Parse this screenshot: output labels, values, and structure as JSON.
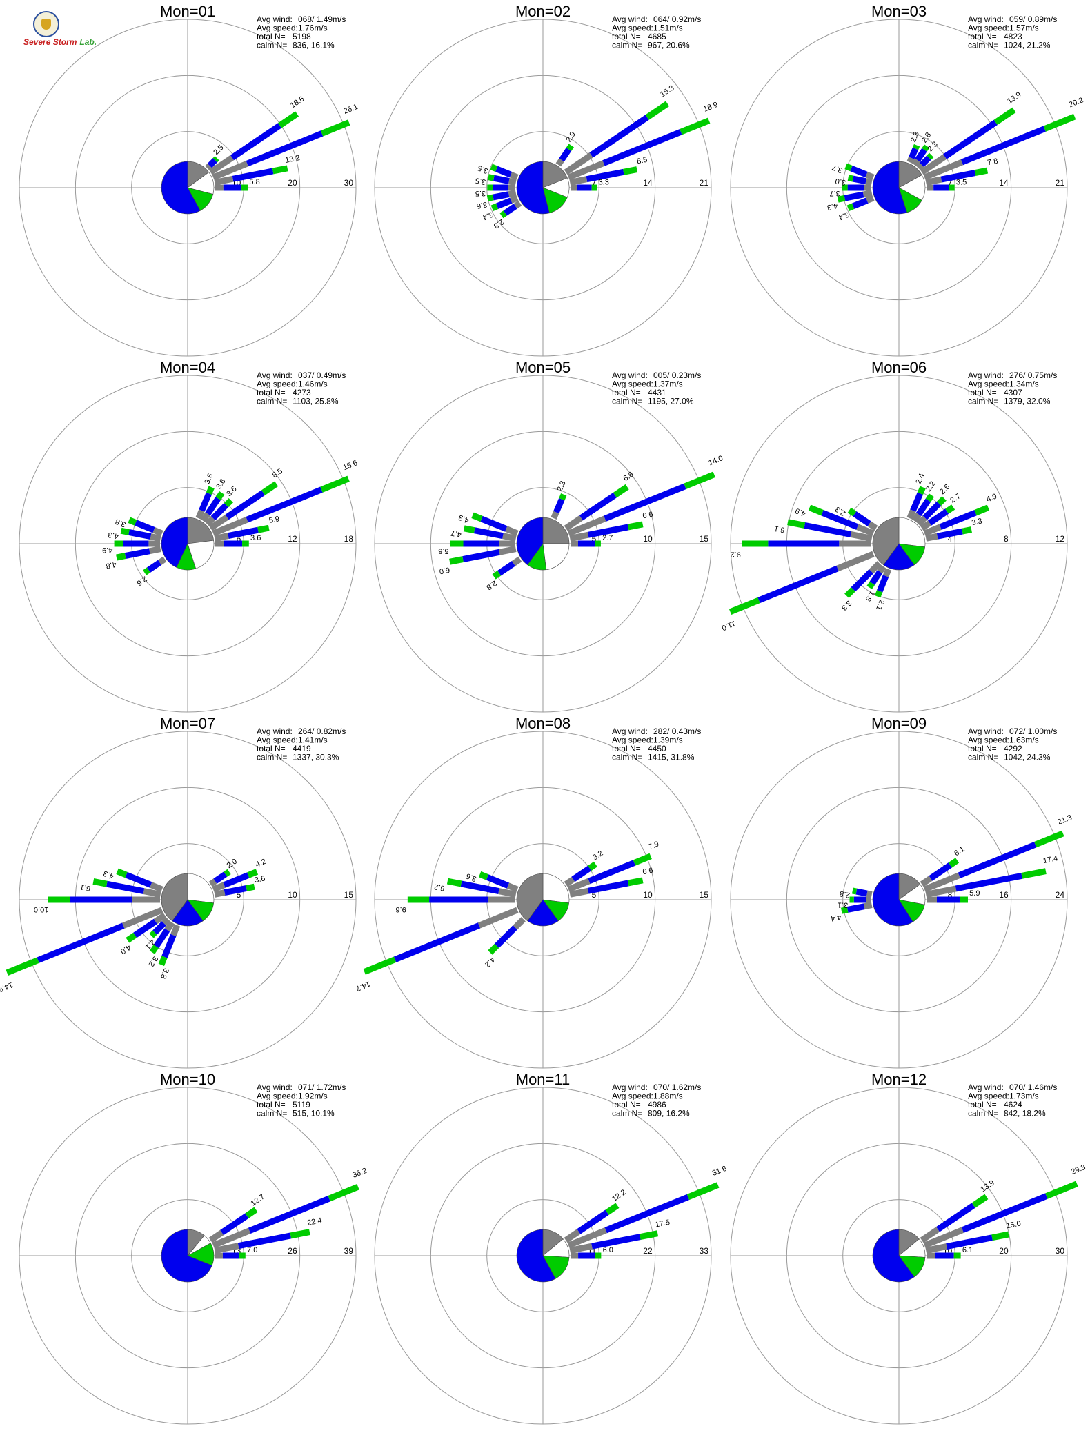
{
  "logo": {
    "line1": "Severe",
    "line2": "Storm",
    "line3": "Lab."
  },
  "colors": {
    "ring": "#9a9a9a",
    "axis": "#9a9a9a",
    "low": "#808080",
    "mid": "#0000ee",
    "high": "#00cc00",
    "calm": "#ffffff",
    "text": "#000000"
  },
  "info_labels": {
    "avg_wind": "Avg wind:",
    "avg_speed": "Avg speed:",
    "total_n": "total N=",
    "calm_n": "calm N="
  },
  "chart_data": [
    {
      "type": "polar_bar",
      "title": "Mon=01",
      "avg_wind": "068/ 1.49m/s",
      "avg_speed": "1.76m/s",
      "total_n": "5198",
      "calm_n": "836,  16.1%",
      "r_ticks": [
        "10",
        "20",
        "30"
      ],
      "r_max": 30,
      "pie": [
        [
          "low",
          0.15
        ],
        [
          "calm",
          0.14
        ],
        [
          "high",
          0.13
        ],
        [
          "mid",
          0.58
        ]
      ],
      "bars": [
        [
          45,
          2.5
        ],
        [
          56,
          18.6
        ],
        [
          68,
          26.1
        ],
        [
          79,
          13.2
        ],
        [
          90,
          5.8
        ]
      ],
      "labels": [
        "2.5",
        "18.6",
        "26.1",
        "13.2",
        "5.8"
      ]
    },
    {
      "type": "polar_bar",
      "title": "Mon=02",
      "avg_wind": "064/ 0.92m/s",
      "avg_speed": "1.51m/s",
      "total_n": "4685",
      "calm_n": "967,  20.6%",
      "r_ticks": [
        "7",
        "14",
        "21"
      ],
      "r_max": 21,
      "pie": [
        [
          "low",
          0.19
        ],
        [
          "calm",
          0.12
        ],
        [
          "high",
          0.15
        ],
        [
          "mid",
          0.54
        ]
      ],
      "bars": [
        [
          34,
          2.9
        ],
        [
          56,
          15.3
        ],
        [
          68,
          18.9
        ],
        [
          79,
          8.5
        ],
        [
          90,
          3.3
        ],
        [
          236,
          2.8
        ],
        [
          248,
          3.4
        ],
        [
          259,
          3.6
        ],
        [
          270,
          3.5
        ],
        [
          281,
          3.5
        ],
        [
          292,
          3.5
        ]
      ],
      "labels": [
        "2.9",
        "15.3",
        "18.9",
        "8.5",
        "3.3",
        "2.8",
        "3.4",
        "3.6",
        "3.5",
        "3.5",
        "3.5"
      ]
    },
    {
      "type": "polar_bar",
      "title": "Mon=03",
      "avg_wind": "059/ 0.89m/s",
      "avg_speed": "1.57m/s",
      "total_n": "4823",
      "calm_n": "1024,  21.2%",
      "r_ticks": [
        "7",
        "14",
        "21"
      ],
      "r_max": 21,
      "pie": [
        [
          "low",
          0.17
        ],
        [
          "calm",
          0.16
        ],
        [
          "high",
          0.12
        ],
        [
          "mid",
          0.55
        ]
      ],
      "bars": [
        [
          23,
          2.3
        ],
        [
          34,
          2.8
        ],
        [
          45,
          2.3
        ],
        [
          56,
          13.9
        ],
        [
          68,
          20.2
        ],
        [
          79,
          7.8
        ],
        [
          90,
          3.5
        ],
        [
          248,
          3.4
        ],
        [
          259,
          4.3
        ],
        [
          270,
          3.7
        ],
        [
          281,
          3.0
        ],
        [
          292,
          3.7
        ]
      ],
      "labels": [
        "2.3",
        "2.8",
        "2.3",
        "13.9",
        "20.2",
        "7.8",
        "3.5",
        "3.4",
        "4.3",
        "3.7",
        "3.0",
        "3.7"
      ]
    },
    {
      "type": "polar_bar",
      "title": "Mon=04",
      "avg_wind": "037/ 0.49m/s",
      "avg_speed": "1.46m/s",
      "total_n": "4273",
      "calm_n": "1103,  25.8%",
      "r_ticks": [
        "6",
        "12",
        "18"
      ],
      "r_max": 18,
      "pie": [
        [
          "low",
          0.23
        ],
        [
          "calm",
          0.22
        ],
        [
          "high",
          0.12
        ],
        [
          "mid",
          0.43
        ]
      ],
      "bars": [
        [
          23,
          3.6
        ],
        [
          34,
          3.6
        ],
        [
          45,
          3.6
        ],
        [
          56,
          8.5
        ],
        [
          68,
          15.6
        ],
        [
          79,
          5.9
        ],
        [
          90,
          3.6
        ],
        [
          236,
          2.6
        ],
        [
          259,
          4.8
        ],
        [
          270,
          4.9
        ],
        [
          281,
          4.3
        ],
        [
          292,
          3.8
        ]
      ],
      "labels": [
        "3.6",
        "3.6",
        "3.6",
        "8.5",
        "15.6",
        "5.9",
        "3.6",
        "2.6",
        "4.8",
        "4.9",
        "4.3",
        "3.8"
      ]
    },
    {
      "type": "polar_bar",
      "title": "Mon=05",
      "avg_wind": "005/ 0.23m/s",
      "avg_speed": "1.37m/s",
      "total_n": "4431",
      "calm_n": "1195,  27.0%",
      "r_ticks": [
        "5",
        "10",
        "15"
      ],
      "r_max": 15,
      "pie": [
        [
          "low",
          0.25
        ],
        [
          "calm",
          0.23
        ],
        [
          "high",
          0.12
        ],
        [
          "mid",
          0.4
        ]
      ],
      "bars": [
        [
          23,
          2.3
        ],
        [
          56,
          6.6
        ],
        [
          68,
          14.0
        ],
        [
          79,
          6.6
        ],
        [
          90,
          2.7
        ],
        [
          236,
          2.8
        ],
        [
          259,
          6.0
        ],
        [
          270,
          5.8
        ],
        [
          281,
          4.7
        ],
        [
          292,
          4.3
        ]
      ],
      "labels": [
        "2.3",
        "6.6",
        "14.0",
        "6.6",
        "2.7",
        "2.8",
        "6.0",
        "5.8",
        "4.7",
        "4.3"
      ]
    },
    {
      "type": "polar_bar",
      "title": "Mon=06",
      "avg_wind": "276/ 0.75m/s",
      "avg_speed": "1.34m/s",
      "total_n": "4307",
      "calm_n": "1379,  32.0%",
      "r_ticks": [
        "4",
        "8",
        "12"
      ],
      "r_max": 12,
      "pie": [
        [
          "calm",
          0.27
        ],
        [
          "high",
          0.13
        ],
        [
          "mid",
          0.2
        ],
        [
          "low",
          0.4
        ]
      ],
      "bars": [
        [
          23,
          2.4
        ],
        [
          34,
          2.2
        ],
        [
          45,
          2.6
        ],
        [
          56,
          2.7
        ],
        [
          68,
          4.9
        ],
        [
          79,
          3.3
        ],
        [
          202,
          2.1
        ],
        [
          214,
          1.8
        ],
        [
          225,
          3.3
        ],
        [
          248,
          11.0
        ],
        [
          270,
          9.2
        ],
        [
          281,
          6.1
        ],
        [
          292,
          4.9
        ],
        [
          304,
          2.3
        ]
      ],
      "labels": [
        "2.4",
        "2.2",
        "2.6",
        "2.7",
        "4.9",
        "3.3",
        "2.1",
        "1.8",
        "3.3",
        "11.0",
        "9.2",
        "6.1",
        "4.9",
        "2.3"
      ]
    },
    {
      "type": "polar_bar",
      "title": "Mon=07",
      "avg_wind": "264/ 0.82m/s",
      "avg_speed": "1.41m/s",
      "total_n": "4419",
      "calm_n": "1337,  30.3%",
      "r_ticks": [
        "5",
        "10",
        "15"
      ],
      "r_max": 15,
      "pie": [
        [
          "calm",
          0.27
        ],
        [
          "high",
          0.13
        ],
        [
          "mid",
          0.2
        ],
        [
          "low",
          0.4
        ]
      ],
      "bars": [
        [
          56,
          2.0
        ],
        [
          68,
          4.2
        ],
        [
          79,
          3.6
        ],
        [
          202,
          3.8
        ],
        [
          214,
          3.2
        ],
        [
          225,
          2.1
        ],
        [
          236,
          4.0
        ],
        [
          248,
          14.9
        ],
        [
          270,
          10.0
        ],
        [
          281,
          6.1
        ],
        [
          292,
          4.3
        ]
      ],
      "labels": [
        "2.0",
        "4.2",
        "3.6",
        "3.8",
        "3.2",
        "2.1",
        "4.0",
        "14.9",
        "10.0",
        "6.1",
        "4.3"
      ]
    },
    {
      "type": "polar_bar",
      "title": "Mon=08",
      "avg_wind": "282/ 0.43m/s",
      "avg_speed": "1.39m/s",
      "total_n": "4450",
      "calm_n": "1415,  31.8%",
      "r_ticks": [
        "5",
        "10",
        "15"
      ],
      "r_max": 15,
      "pie": [
        [
          "calm",
          0.27
        ],
        [
          "high",
          0.13
        ],
        [
          "mid",
          0.2
        ],
        [
          "low",
          0.4
        ]
      ],
      "bars": [
        [
          56,
          3.2
        ],
        [
          68,
          7.9
        ],
        [
          79,
          6.6
        ],
        [
          225,
          4.2
        ],
        [
          248,
          14.7
        ],
        [
          270,
          9.6
        ],
        [
          281,
          6.2
        ],
        [
          292,
          3.6
        ]
      ],
      "labels": [
        "3.2",
        "7.9",
        "6.6",
        "4.2",
        "14.7",
        "9.6",
        "6.2",
        "3.6"
      ]
    },
    {
      "type": "polar_bar",
      "title": "Mon=09",
      "avg_wind": "072/ 1.00m/s",
      "avg_speed": "1.63m/s",
      "total_n": "4292",
      "calm_n": "1042,  24.3%",
      "r_ticks": [
        "8",
        "16",
        "24"
      ],
      "r_max": 24,
      "pie": [
        [
          "low",
          0.15
        ],
        [
          "calm",
          0.13
        ],
        [
          "high",
          0.13
        ],
        [
          "mid",
          0.59
        ]
      ],
      "bars": [
        [
          56,
          6.1
        ],
        [
          68,
          21.3
        ],
        [
          79,
          17.4
        ],
        [
          90,
          5.9
        ],
        [
          259,
          4.4
        ],
        [
          270,
          3.1
        ],
        [
          281,
          2.8
        ]
      ],
      "labels": [
        "6.1",
        "21.3",
        "17.4",
        "5.9",
        "4.4",
        "3.1",
        "2.8"
      ]
    },
    {
      "type": "polar_bar",
      "title": "Mon=10",
      "avg_wind": "071/ 1.72m/s",
      "avg_speed": "1.92m/s",
      "total_n": "5119",
      "calm_n": "515,  10.1%",
      "r_ticks": [
        "13",
        "26",
        "39"
      ],
      "r_max": 39,
      "pie": [
        [
          "low",
          0.11
        ],
        [
          "calm",
          0.06
        ],
        [
          "high",
          0.14
        ],
        [
          "mid",
          0.69
        ]
      ],
      "bars": [
        [
          56,
          12.7
        ],
        [
          68,
          36.2
        ],
        [
          79,
          22.4
        ],
        [
          90,
          7.0
        ]
      ],
      "labels": [
        "12.7",
        "36.2",
        "22.4",
        "7.0"
      ]
    },
    {
      "type": "polar_bar",
      "title": "Mon=11",
      "avg_wind": "070/ 1.62m/s",
      "avg_speed": "1.88m/s",
      "total_n": "4986",
      "calm_n": "809,  16.2%",
      "r_ticks": [
        "11",
        "22",
        "33"
      ],
      "r_max": 33,
      "pie": [
        [
          "low",
          0.14
        ],
        [
          "calm",
          0.12
        ],
        [
          "high",
          0.16
        ],
        [
          "mid",
          0.58
        ]
      ],
      "bars": [
        [
          56,
          12.2
        ],
        [
          68,
          31.6
        ],
        [
          79,
          17.5
        ],
        [
          90,
          6.0
        ]
      ],
      "labels": [
        "12.2",
        "31.6",
        "17.5",
        "6.0"
      ]
    },
    {
      "type": "polar_bar",
      "title": "Mon=12",
      "avg_wind": "070/ 1.46m/s",
      "avg_speed": "1.73m/s",
      "total_n": "4624",
      "calm_n": "842,  18.2%",
      "r_ticks": [
        "10",
        "20",
        "30"
      ],
      "r_max": 30,
      "pie": [
        [
          "low",
          0.14
        ],
        [
          "calm",
          0.12
        ],
        [
          "high",
          0.14
        ],
        [
          "mid",
          0.6
        ]
      ],
      "bars": [
        [
          56,
          13.9
        ],
        [
          68,
          29.3
        ],
        [
          79,
          15.0
        ],
        [
          90,
          6.1
        ]
      ],
      "labels": [
        "13.9",
        "29.3",
        "15.0",
        "6.1"
      ]
    }
  ]
}
